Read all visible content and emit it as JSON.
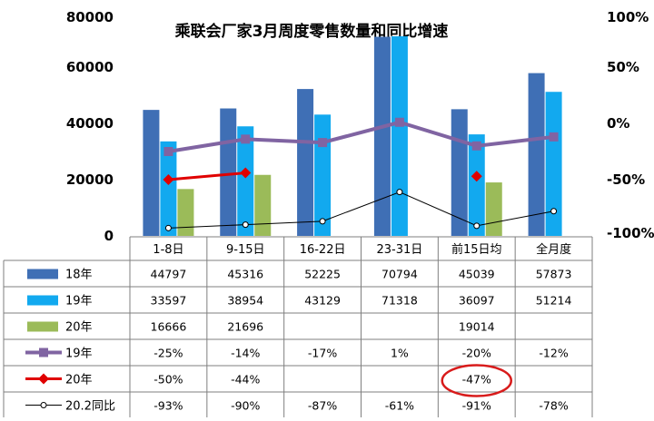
{
  "chart_data": {
    "type": "bar",
    "title": "乘联会厂家3月周度零售数量和同比增速",
    "categories": [
      "1-8日",
      "9-15日",
      "16-22日",
      "23-31日",
      "前15日均",
      "全月度"
    ],
    "y_left": {
      "min": 0,
      "max": 80000,
      "ticks": [
        "0",
        "20000",
        "40000",
        "60000",
        "80000"
      ]
    },
    "y_right": {
      "min": -100,
      "max": 100,
      "ticks": [
        "-100%",
        "-50%",
        "0%",
        "50%",
        "100%"
      ]
    },
    "bar_series": [
      {
        "name": "18年",
        "color": "#3f6fb5",
        "values": [
          44797,
          45316,
          52225,
          70794,
          45039,
          57873
        ],
        "labels": [
          "44797",
          "45316",
          "52225",
          "70794",
          "45039",
          "57873"
        ]
      },
      {
        "name": "19年",
        "color": "#12a9ef",
        "values": [
          33597,
          38954,
          43129,
          71318,
          36097,
          51214
        ],
        "labels": [
          "33597",
          "38954",
          "43129",
          "71318",
          "36097",
          "51214"
        ]
      },
      {
        "name": "20年",
        "color": "#9bbb59",
        "values": [
          16666,
          21696,
          null,
          null,
          19014,
          null
        ],
        "labels": [
          "16666",
          "21696",
          "",
          "",
          "19014",
          ""
        ]
      }
    ],
    "line_series": [
      {
        "name": "19年",
        "color": "#8064a2",
        "marker": "square",
        "width": 4,
        "segmented": false,
        "values": [
          -25,
          -14,
          -17,
          1,
          -20,
          -12
        ],
        "labels": [
          "-25%",
          "-14%",
          "-17%",
          "1%",
          "-20%",
          "-12%"
        ]
      },
      {
        "name": "20年",
        "color": "#e00000",
        "marker": "diamond",
        "width": 3,
        "segmented": true,
        "values": [
          -50,
          -44,
          null,
          null,
          -47,
          null
        ],
        "labels": [
          "-50%",
          "-44%",
          "",
          "",
          "-47%",
          ""
        ]
      },
      {
        "name": "20.2同比",
        "color": "#000000",
        "marker": "circle",
        "width": 1,
        "segmented": false,
        "values": [
          -93,
          -90,
          -87,
          -61,
          -91,
          -78
        ],
        "labels": [
          "-93%",
          "-90%",
          "-87%",
          "-61%",
          "-91%",
          "-78%"
        ]
      }
    ],
    "annotation": {
      "type": "red-circle",
      "target": "20年 前15日均 -47%"
    }
  }
}
